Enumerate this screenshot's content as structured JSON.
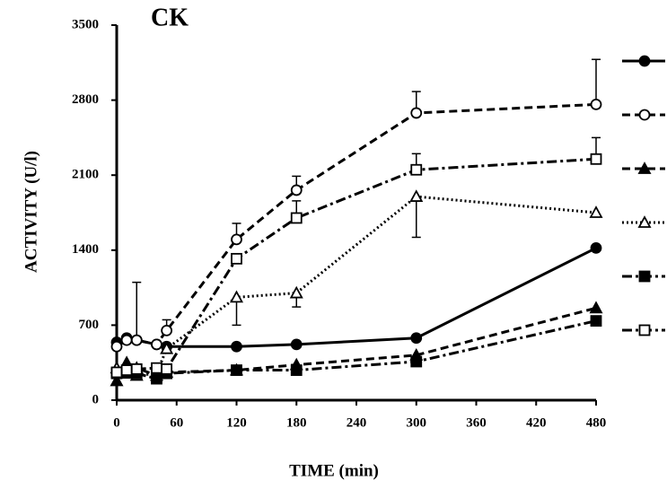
{
  "chart_data": {
    "type": "line",
    "title": "CK",
    "x_label": "TIME  (min)",
    "y_label": "ACTIVITY  (U/l)",
    "x": [
      0,
      10,
      20,
      40,
      50,
      120,
      180,
      300,
      480
    ],
    "xlim": [
      0,
      480
    ],
    "xticks": [
      0,
      60,
      120,
      180,
      240,
      300,
      360,
      420,
      480
    ],
    "ylim": [
      0,
      3500
    ],
    "yticks": [
      0,
      700,
      1400,
      2100,
      2800,
      3500
    ],
    "series": [
      {
        "color": "#000000",
        "marker": "circle",
        "filled": true,
        "dash": "solid",
        "error_direction": "up",
        "values": [
          540,
          580,
          560,
          520,
          500,
          500,
          520,
          580,
          1420
        ],
        "errors": [
          null,
          null,
          540,
          null,
          null,
          null,
          null,
          null,
          null
        ]
      },
      {
        "color": "#000000",
        "marker": "circle",
        "filled": false,
        "dash": "dashed",
        "error_direction": "up",
        "values": [
          500,
          560,
          560,
          520,
          650,
          1500,
          1960,
          2680,
          2760
        ],
        "errors": [
          null,
          null,
          null,
          null,
          100,
          150,
          130,
          200,
          420
        ]
      },
      {
        "color": "#000000",
        "marker": "triangle",
        "filled": true,
        "dash": "dashed",
        "error_direction": "up",
        "values": [
          180,
          350,
          300,
          230,
          260,
          280,
          330,
          420,
          860
        ],
        "errors": [
          null,
          null,
          null,
          null,
          null,
          null,
          null,
          null,
          null
        ]
      },
      {
        "color": "#000000",
        "marker": "triangle",
        "filled": false,
        "dash": "dotted",
        "error_direction": "down",
        "values": [
          300,
          250,
          230,
          250,
          480,
          960,
          1000,
          1900,
          1750
        ],
        "errors": [
          null,
          null,
          null,
          null,
          null,
          260,
          130,
          380,
          null
        ]
      },
      {
        "color": "#000000",
        "marker": "square",
        "filled": true,
        "dash": "dashdot",
        "error_direction": "up",
        "values": [
          250,
          260,
          250,
          200,
          250,
          280,
          280,
          360,
          740
        ],
        "errors": [
          null,
          null,
          null,
          null,
          null,
          null,
          null,
          null,
          null
        ]
      },
      {
        "color": "#000000",
        "marker": "square",
        "filled": false,
        "dash": "dashdot",
        "error_direction": "up",
        "values": [
          260,
          280,
          290,
          300,
          290,
          1320,
          1700,
          2150,
          2250
        ],
        "errors": [
          null,
          null,
          null,
          null,
          null,
          null,
          160,
          150,
          200
        ]
      }
    ]
  }
}
